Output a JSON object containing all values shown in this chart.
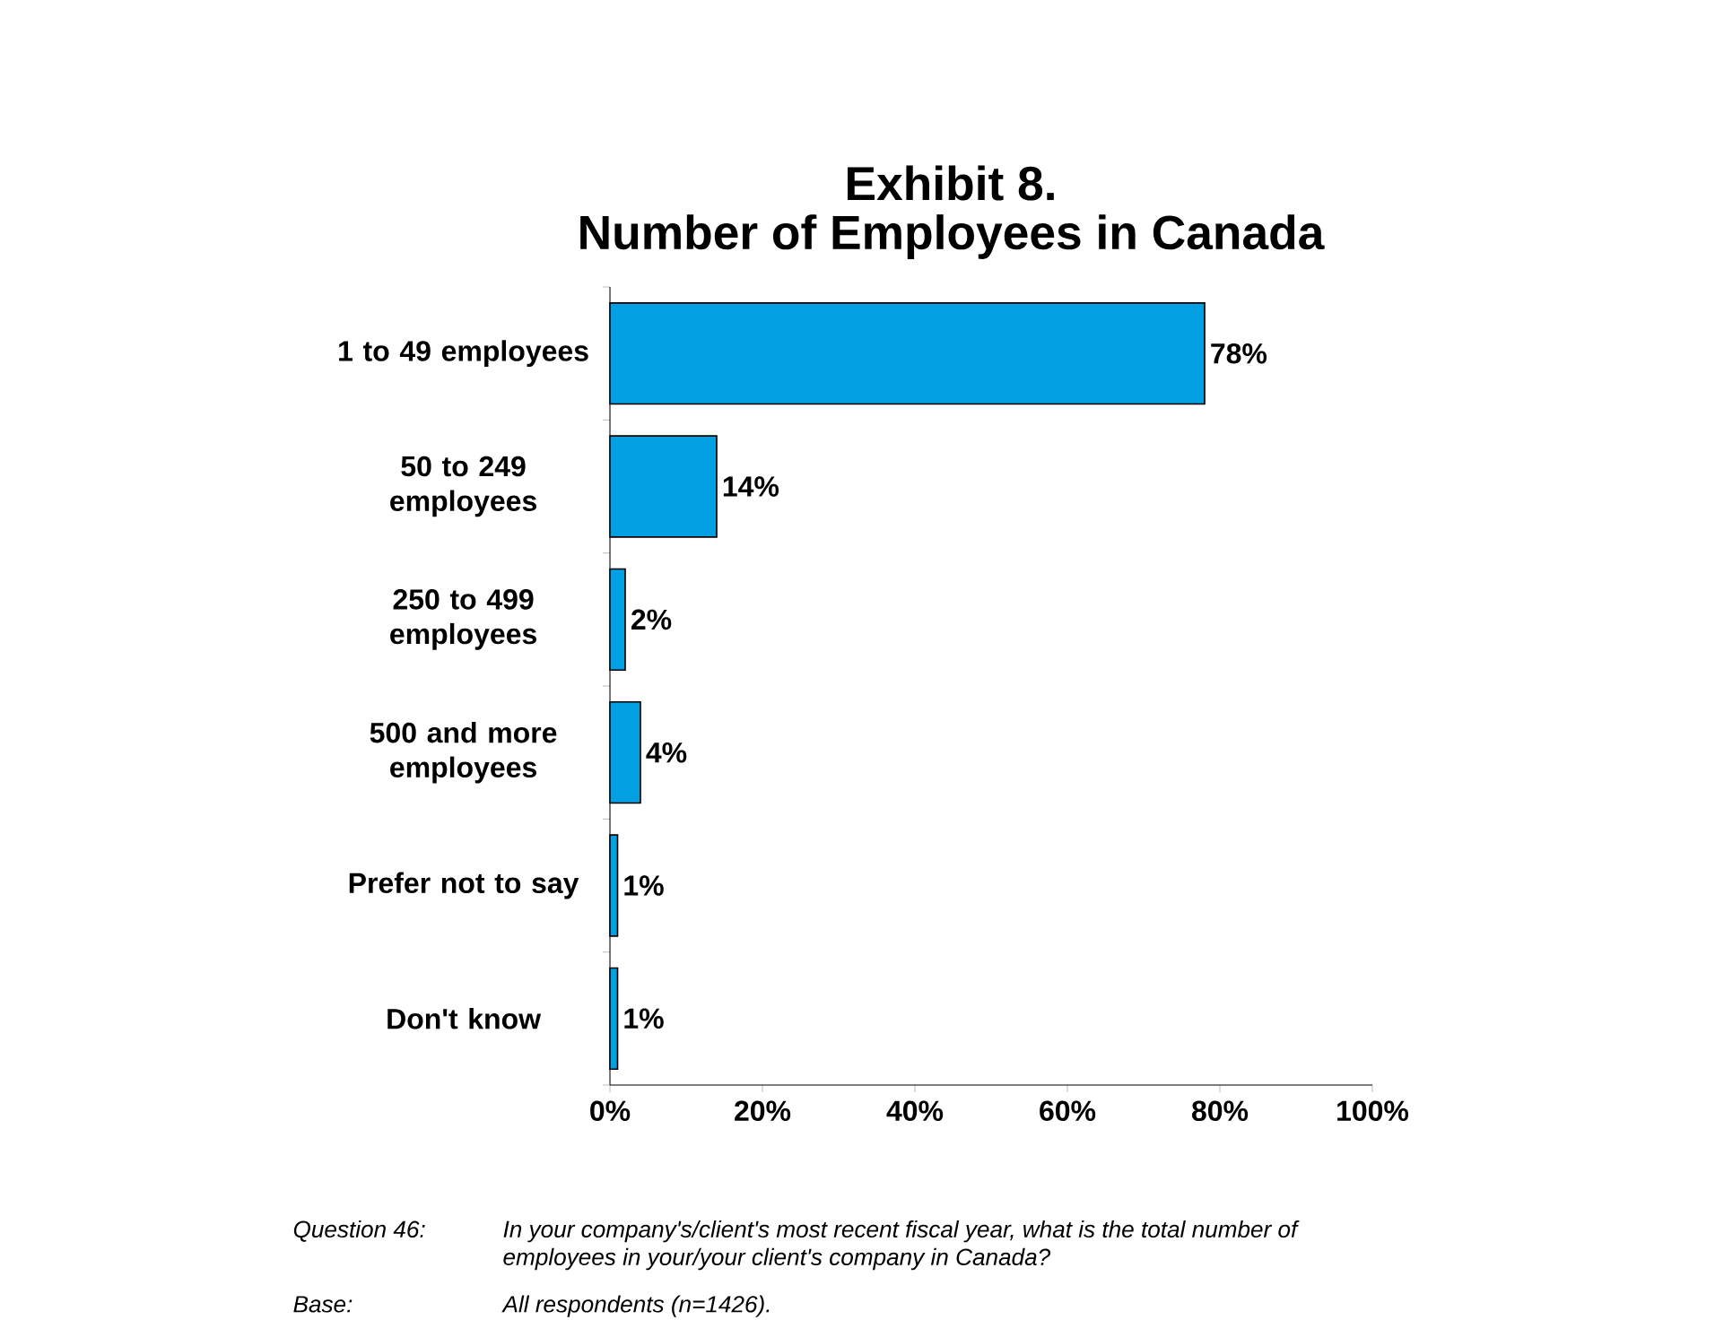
{
  "chart_data": {
    "type": "bar",
    "orientation": "horizontal",
    "title": "Exhibit 8.",
    "subtitle": "Number of Employees in Canada",
    "categories": [
      "1 to 49 employees",
      "50 to 249 employees",
      "250 to 499 employees",
      "500 and more employees",
      "Prefer not to say",
      "Don't know"
    ],
    "values": [
      78,
      14,
      2,
      4,
      1,
      1
    ],
    "value_labels": [
      "78%",
      "14%",
      "2%",
      "4%",
      "1%",
      "1%"
    ],
    "color": "#00a0e3",
    "xlim": [
      0,
      100
    ],
    "xticks": [
      {
        "value": 0,
        "label": "0%"
      },
      {
        "value": 20,
        "label": "20%"
      },
      {
        "value": 40,
        "label": "40%"
      },
      {
        "value": 60,
        "label": "60%"
      },
      {
        "value": 80,
        "label": "80%"
      },
      {
        "value": 100,
        "label": "100%"
      }
    ],
    "grid": false,
    "annotations": [
      "Question 46:",
      "In your company's/client's most recent fiscal year, what is the total number of employees in your/your client's company in Canada?",
      "Base:",
      "All respondents (n=1426)."
    ]
  }
}
